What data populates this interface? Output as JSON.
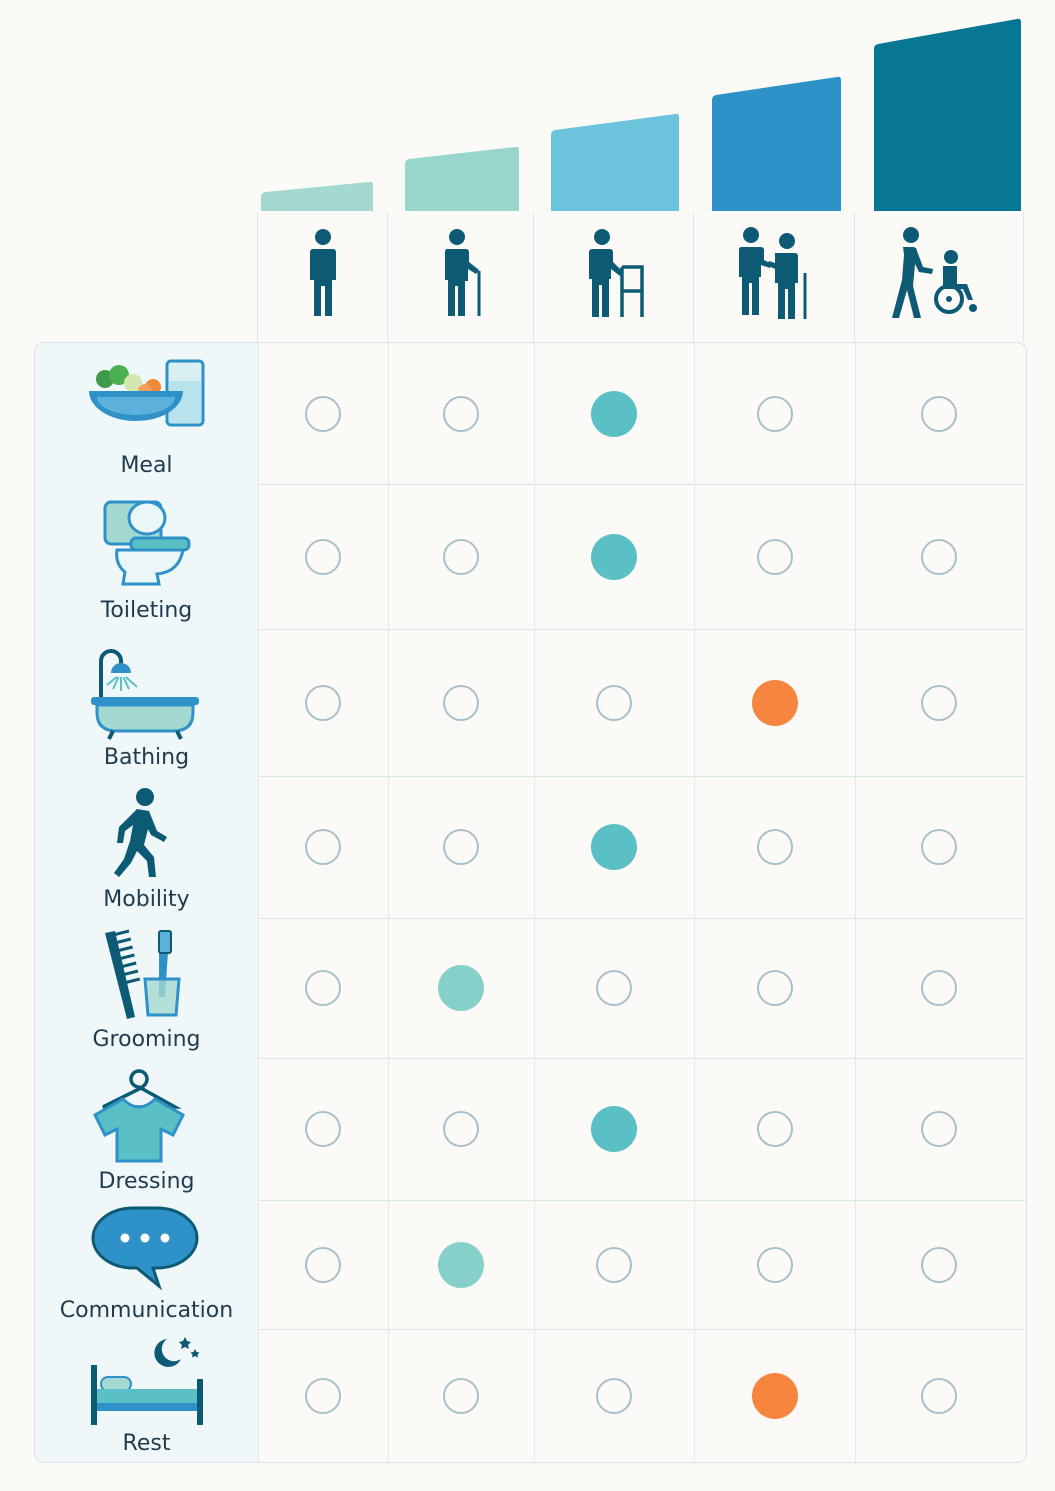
{
  "scale": {
    "levels": [
      {
        "icon": "person-standing-icon",
        "color": "#a3d9d0",
        "level": 1
      },
      {
        "icon": "person-with-cane-icon",
        "color": "#98d5cd",
        "level": 2
      },
      {
        "icon": "person-with-walker-icon",
        "color": "#6cc3dc",
        "level": 3
      },
      {
        "icon": "person-assisted-icon",
        "color": "#2e92c8",
        "level": 4
      },
      {
        "icon": "person-wheelchair-pushed-icon",
        "color": "#077793",
        "level": 5
      }
    ]
  },
  "activities": [
    {
      "label": "Meal",
      "icon": "meal-bowl-icon",
      "selected": 3,
      "color": "#5bbfc6"
    },
    {
      "label": "Toileting",
      "icon": "toilet-icon",
      "selected": 3,
      "color": "#5bbfc6"
    },
    {
      "label": "Bathing",
      "icon": "bathtub-shower-icon",
      "selected": 4,
      "color": "#f5853f"
    },
    {
      "label": "Mobility",
      "icon": "walking-person-icon",
      "selected": 3,
      "color": "#5bbfc6"
    },
    {
      "label": "Grooming",
      "icon": "comb-toothbrush-icon",
      "selected": 2,
      "color": "#85d0c8"
    },
    {
      "label": "Dressing",
      "icon": "shirt-hanger-icon",
      "selected": 3,
      "color": "#5bbfc6"
    },
    {
      "label": "Communication",
      "icon": "speech-bubble-icon",
      "selected": 2,
      "color": "#85d0c8"
    },
    {
      "label": "Rest",
      "icon": "bed-moon-icon",
      "selected": 4,
      "color": "#f5853f"
    }
  ]
}
